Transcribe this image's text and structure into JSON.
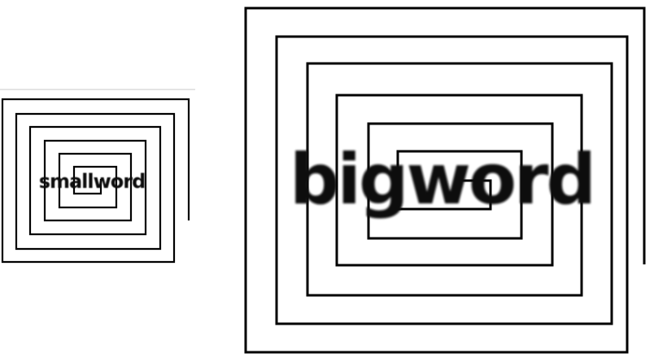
{
  "panels": {
    "small": {
      "word": "smallword"
    },
    "big": {
      "word": "bigword"
    }
  },
  "colors": {
    "stroke": "#000000",
    "text": "#111111",
    "background": "#ffffff",
    "rule": "#c8c8c8"
  }
}
